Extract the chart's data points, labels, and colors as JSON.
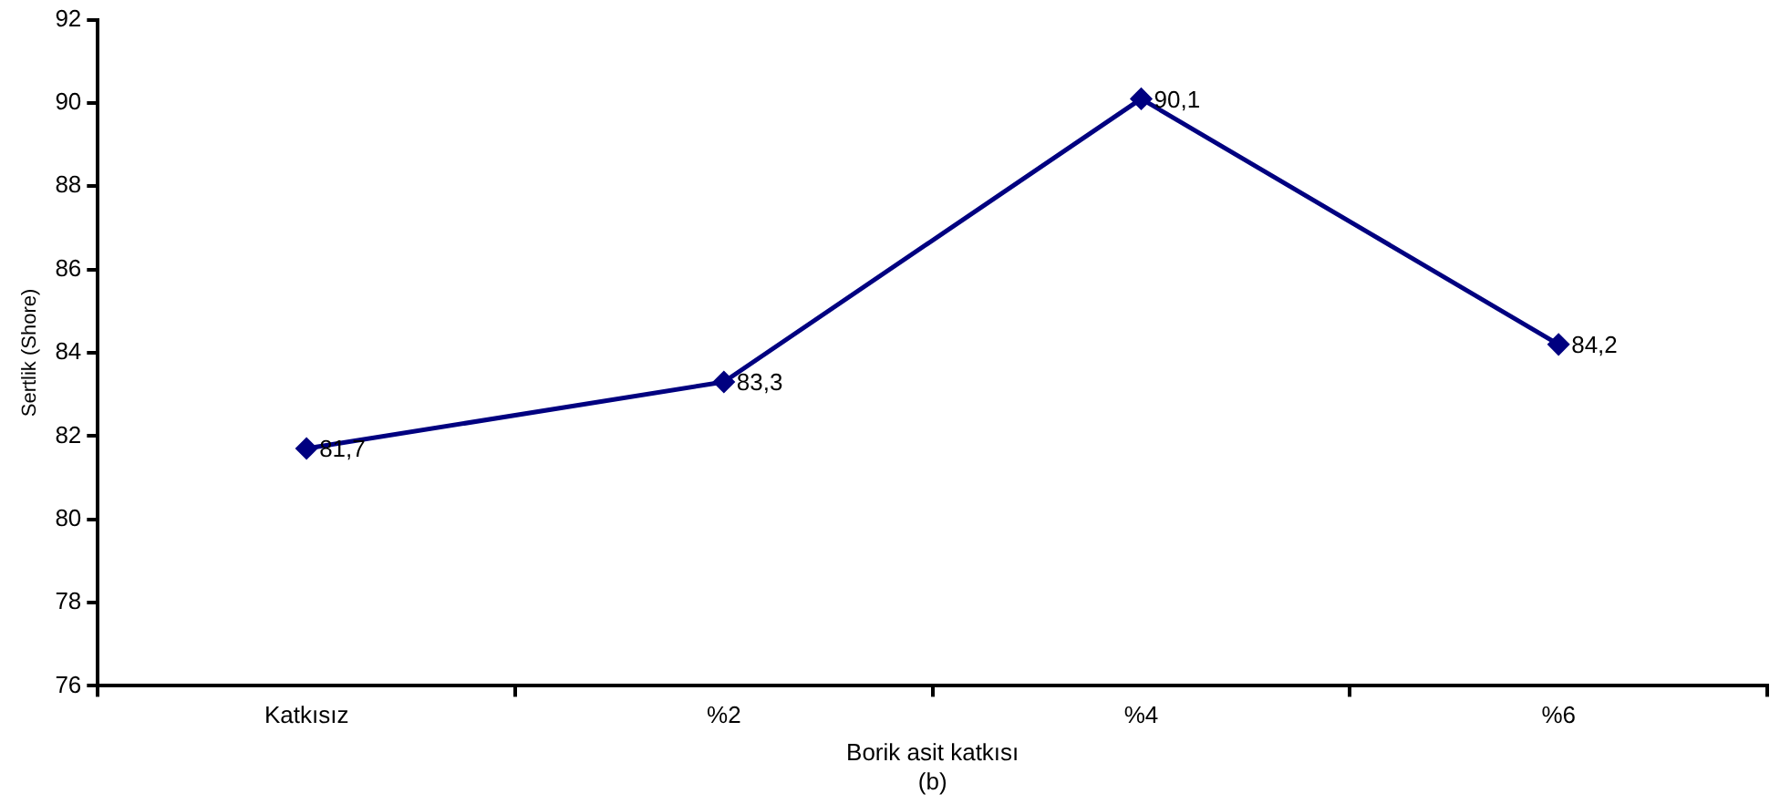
{
  "chart_data": {
    "type": "line",
    "xlabel": "Borik asit katkısı",
    "ylabel": "Sertlik (Shore)",
    "annotations": [
      "(b)"
    ],
    "categories": [
      "Katkısız",
      "%2",
      "%4",
      "%6"
    ],
    "series": [
      {
        "color": "#000080",
        "values": [
          81.7,
          83.3,
          90.1,
          84.2
        ],
        "value_labels": [
          "81,7",
          "83,3",
          "90,1",
          "84,2"
        ]
      }
    ],
    "ylim": [
      76,
      92
    ],
    "yticks": [
      76,
      78,
      80,
      82,
      84,
      86,
      88,
      90,
      92
    ],
    "grid": false,
    "legend": false,
    "marker": "diamond",
    "line_style": "solid"
  }
}
